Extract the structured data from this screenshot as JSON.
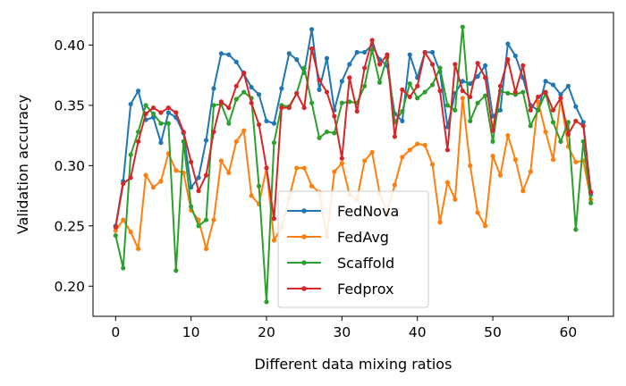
{
  "chart_data": {
    "type": "line",
    "xlabel": "Different data mixing ratios",
    "ylabel": "Validation accuracy",
    "xlim": [
      -3,
      66
    ],
    "ylim": [
      0.175,
      0.427
    ],
    "xticks": [
      0,
      10,
      20,
      30,
      40,
      50,
      60
    ],
    "yticks": [
      0.2,
      0.25,
      0.3,
      0.35,
      0.4
    ],
    "ytick_labels": [
      "0.20",
      "0.25",
      "0.30",
      "0.35",
      "0.40"
    ],
    "legend_position": "lower-center",
    "grid": false,
    "series": [
      {
        "name": "FedNova",
        "color": "#1f77b4",
        "values": [
          0.25,
          0.287,
          0.351,
          0.362,
          0.338,
          0.34,
          0.319,
          0.344,
          0.34,
          0.327,
          0.282,
          0.29,
          0.321,
          0.364,
          0.393,
          0.392,
          0.386,
          0.376,
          0.365,
          0.359,
          0.337,
          0.335,
          0.364,
          0.393,
          0.388,
          0.377,
          0.413,
          0.363,
          0.389,
          0.346,
          0.37,
          0.384,
          0.394,
          0.394,
          0.4,
          0.388,
          0.383,
          0.343,
          0.337,
          0.392,
          0.373,
          0.394,
          0.394,
          0.378,
          0.332,
          0.36,
          0.37,
          0.368,
          0.374,
          0.383,
          0.341,
          0.346,
          0.401,
          0.391,
          0.373,
          0.35,
          0.346,
          0.37,
          0.367,
          0.359,
          0.366,
          0.349,
          0.336,
          0.276
        ]
      },
      {
        "name": "FedAvg",
        "color": "#ff7f0e",
        "values": [
          0.246,
          0.255,
          0.245,
          0.231,
          0.292,
          0.282,
          0.287,
          0.31,
          0.296,
          0.294,
          0.263,
          0.255,
          0.231,
          0.255,
          0.304,
          0.294,
          0.32,
          0.329,
          0.275,
          0.268,
          0.298,
          0.238,
          0.249,
          0.273,
          0.298,
          0.298,
          0.283,
          0.278,
          0.241,
          0.295,
          0.302,
          0.276,
          0.272,
          0.304,
          0.311,
          0.277,
          0.262,
          0.284,
          0.307,
          0.313,
          0.318,
          0.317,
          0.301,
          0.253,
          0.286,
          0.272,
          0.356,
          0.3,
          0.261,
          0.25,
          0.308,
          0.292,
          0.325,
          0.305,
          0.279,
          0.295,
          0.353,
          0.328,
          0.305,
          0.356,
          0.316,
          0.303,
          0.304,
          0.272
        ]
      },
      {
        "name": "Scaffold",
        "color": "#2ca02c",
        "values": [
          0.242,
          0.215,
          0.309,
          0.328,
          0.35,
          0.343,
          0.335,
          0.335,
          0.213,
          0.32,
          0.266,
          0.25,
          0.255,
          0.35,
          0.351,
          0.335,
          0.355,
          0.361,
          0.356,
          0.283,
          0.187,
          0.319,
          0.35,
          0.349,
          0.36,
          0.381,
          0.352,
          0.323,
          0.328,
          0.327,
          0.352,
          0.353,
          0.352,
          0.366,
          0.396,
          0.369,
          0.39,
          0.336,
          0.345,
          0.368,
          0.356,
          0.361,
          0.367,
          0.381,
          0.35,
          0.346,
          0.415,
          0.337,
          0.352,
          0.358,
          0.32,
          0.362,
          0.36,
          0.359,
          0.361,
          0.333,
          0.346,
          0.36,
          0.336,
          0.32,
          0.336,
          0.247,
          0.32,
          0.269
        ]
      },
      {
        "name": "Fedprox",
        "color": "#d62728",
        "values": [
          0.249,
          0.285,
          0.29,
          0.32,
          0.343,
          0.348,
          0.344,
          0.348,
          0.344,
          0.328,
          0.303,
          0.279,
          0.292,
          0.328,
          0.353,
          0.348,
          0.366,
          0.377,
          0.352,
          0.334,
          0.298,
          0.256,
          0.348,
          0.348,
          0.36,
          0.348,
          0.397,
          0.371,
          0.361,
          0.341,
          0.306,
          0.373,
          0.345,
          0.381,
          0.404,
          0.384,
          0.392,
          0.324,
          0.363,
          0.357,
          0.366,
          0.394,
          0.384,
          0.362,
          0.313,
          0.384,
          0.362,
          0.357,
          0.385,
          0.373,
          0.329,
          0.366,
          0.388,
          0.361,
          0.383,
          0.346,
          0.357,
          0.361,
          0.346,
          0.356,
          0.326,
          0.337,
          0.333,
          0.278
        ]
      }
    ]
  }
}
